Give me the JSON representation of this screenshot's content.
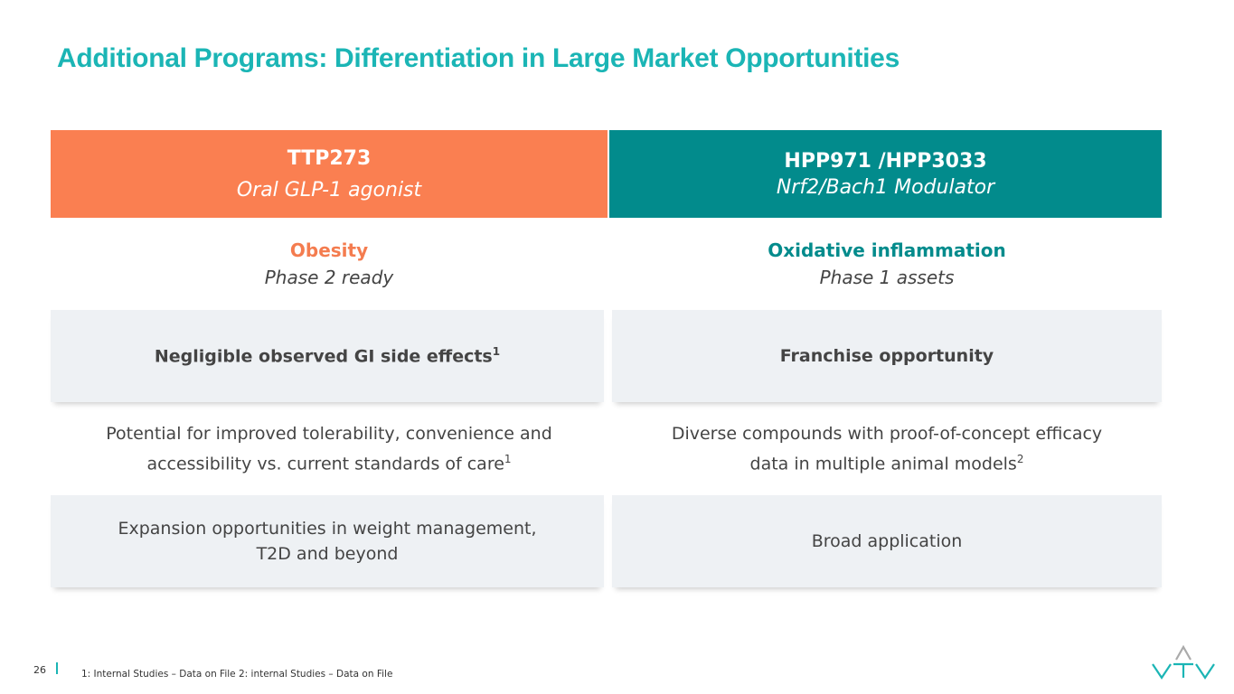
{
  "title": "Additional Programs: Differentiation in Large Market Opportunities",
  "columns": [
    {
      "name": "TTP273",
      "subtitle": "Oral GLP-1 agonist",
      "indication": "Obesity",
      "phase": "Phase 2 ready",
      "highlight": {
        "text": "Negligible observed GI side effects",
        "sup": "1"
      },
      "detail": {
        "text": "Potential for improved tolerability, convenience and accessibility vs. current standards of care",
        "sup": "1"
      },
      "expansion": "Expansion opportunities in weight management, T2D and beyond"
    },
    {
      "name": "HPP971 /HPP3033",
      "subtitle": "Nrf2/Bach1 Modulator",
      "indication": "Oxidative inflammation",
      "phase": "Phase 1 assets",
      "highlight": {
        "text": "Franchise opportunity"
      },
      "detail": {
        "text": "Diverse compounds with proof-of-concept efficacy data in multiple animal models",
        "sup": "2"
      },
      "expansion": "Broad application"
    }
  ],
  "footer": {
    "page": "26",
    "notes": "1: Internal Studies – Data on File  2: internal Studies – Data on File"
  }
}
